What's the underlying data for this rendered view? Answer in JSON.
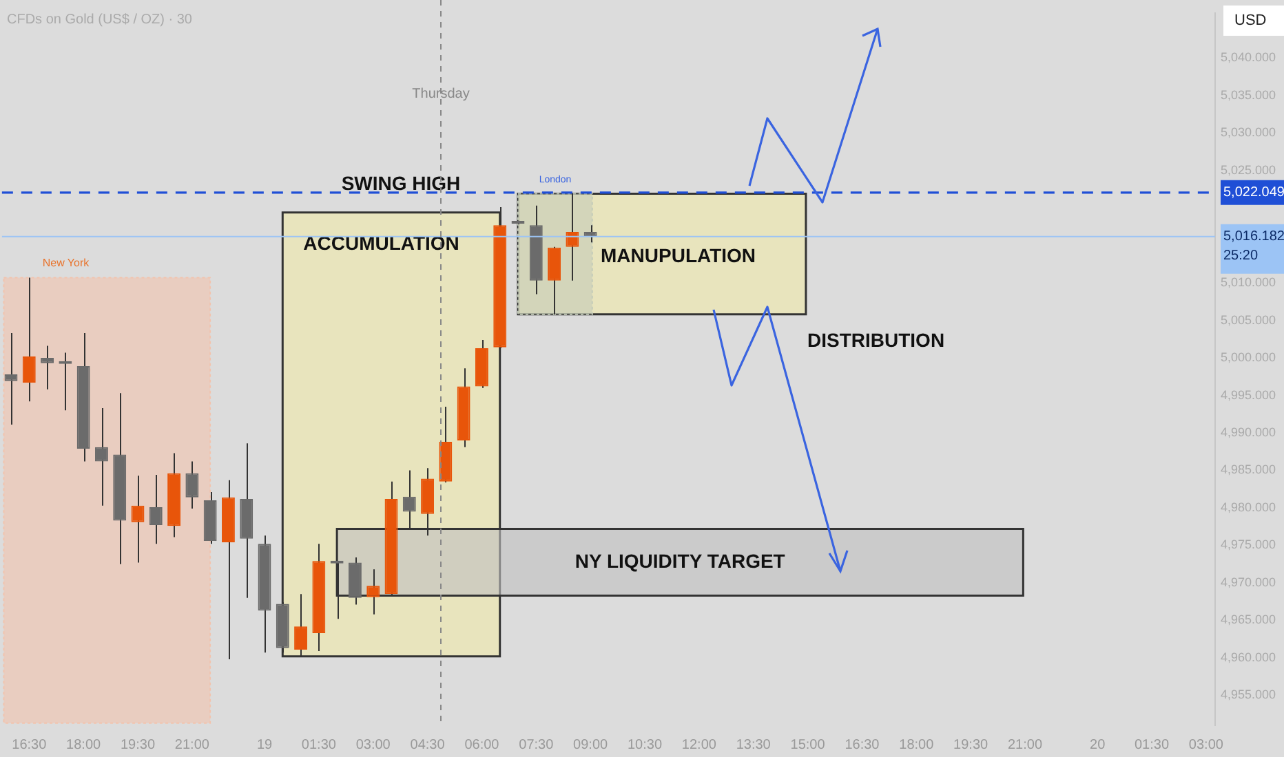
{
  "chart_data": {
    "type": "candlestick",
    "title": "CFDs on Gold (US$ / OZ) · 30",
    "categories": [
      null,
      "16:30",
      null,
      null,
      "18:00",
      null,
      null,
      "19:30",
      null,
      null,
      "21:00",
      null,
      null,
      null,
      "19",
      null,
      null,
      "01:30",
      null,
      null,
      "03:00",
      null,
      null,
      "04:30",
      null,
      null,
      "06:00",
      null,
      null,
      "07:30",
      null,
      null,
      "09:00",
      null,
      null,
      "10:30",
      null,
      null,
      "12:00",
      null,
      null,
      "13:30",
      null,
      null,
      "15:00",
      null,
      null,
      "16:30",
      null,
      null,
      "18:00",
      null,
      null,
      "19:30",
      null,
      null,
      "21:00",
      null,
      null,
      null,
      "20",
      null,
      null,
      "01:30",
      null,
      null,
      "03:00"
    ],
    "ohlc": [
      [
        4997.8,
        5003.3,
        4991.1,
        4996.9
      ],
      [
        4996.7,
        5010.7,
        4994.2,
        5000.2
      ],
      [
        5000.0,
        5001.6,
        4995.8,
        4999.3
      ],
      [
        4999.4,
        5000.7,
        4993.0,
        4999.2
      ],
      [
        4998.9,
        5003.3,
        4986.2,
        4987.9
      ],
      [
        4988.1,
        4993.3,
        4980.3,
        4986.2
      ],
      [
        4987.1,
        4995.3,
        4972.5,
        4978.3
      ],
      [
        4978.1,
        4984.3,
        4972.7,
        4980.3
      ],
      [
        4980.1,
        4984.4,
        4975.2,
        4977.7
      ],
      [
        4977.6,
        4987.3,
        4976.1,
        4984.6
      ],
      [
        4984.6,
        4986.2,
        4979.9,
        4981.4
      ],
      [
        4981.0,
        4982.1,
        4975.2,
        4975.6
      ],
      [
        4975.4,
        4983.7,
        4959.8,
        4981.4
      ],
      [
        4981.2,
        4988.6,
        4968.0,
        4975.9
      ],
      [
        4975.2,
        4976.3,
        4960.7,
        4966.3
      ],
      [
        4967.2,
        4967.4,
        4960.7,
        4961.3
      ],
      [
        4961.1,
        4968.5,
        4960.2,
        4964.2
      ],
      [
        4963.3,
        4975.2,
        4960.9,
        4972.9
      ],
      [
        4972.8,
        4972.9,
        4965.2,
        4972.6
      ],
      [
        4972.7,
        4973.4,
        4967.1,
        4968.0
      ],
      [
        4968.1,
        4971.8,
        4965.8,
        4969.6
      ],
      [
        4968.5,
        4983.5,
        4968.4,
        4981.2
      ],
      [
        4981.5,
        4985.0,
        4977.2,
        4979.5
      ],
      [
        4979.2,
        4985.3,
        4976.3,
        4983.9
      ],
      [
        4983.5,
        4993.5,
        4983.4,
        4988.8
      ],
      [
        4989.0,
        4998.6,
        4988.1,
        4996.2
      ],
      [
        4996.2,
        5002.4,
        4996.0,
        5001.3
      ],
      [
        5001.4,
        5020.1,
        5001.3,
        5017.7
      ],
      [
        5018.2,
        5018.3,
        5017.8,
        5017.9
      ],
      [
        5017.7,
        5020.3,
        5008.5,
        5010.3
      ],
      [
        5010.3,
        5014.8,
        5005.8,
        5014.7
      ],
      [
        5014.8,
        5021.9,
        5010.3,
        5016.8
      ],
      [
        5016.8,
        5017.7,
        5015.4,
        5016.182
      ],
      null,
      null,
      null,
      null,
      null,
      null,
      null,
      null,
      null,
      null,
      null,
      null,
      null,
      null,
      null,
      null,
      null,
      null,
      null,
      null,
      null,
      null,
      null,
      null,
      null,
      null,
      null,
      null,
      null,
      null,
      null,
      null,
      null,
      null
    ],
    "colors": [
      "#6b6b6b",
      "#e8550a",
      "#6b6b6b",
      "#6b6b6b",
      "#6b6b6b",
      "#6b6b6b",
      "#6b6b6b",
      "#e8550a",
      "#6b6b6b",
      "#e8550a",
      "#6b6b6b",
      "#6b6b6b",
      "#e8550a",
      "#6b6b6b",
      "#6b6b6b",
      "#6b6b6b",
      "#e8550a",
      "#e8550a",
      "#6b6b6b",
      "#6b6b6b",
      "#e8550a",
      "#e8550a",
      "#6b6b6b",
      "#e8550a",
      "#e8550a",
      "#e8550a",
      "#e8550a",
      "#e8550a",
      "#6b6b6b",
      "#6b6b6b",
      "#e8550a",
      "#e8550a",
      "#6b6b6b",
      null,
      null,
      null,
      null,
      null,
      null,
      null,
      null,
      null,
      null,
      null,
      null,
      null,
      null,
      null,
      null,
      null,
      null,
      null,
      null,
      null,
      null,
      null,
      null,
      null,
      null,
      null,
      null,
      null,
      null,
      null,
      null,
      null,
      null
    ],
    "ylim": [
      4951,
      5046
    ],
    "yticks": [
      {
        "value": 4955,
        "label": "4,955.000"
      },
      {
        "value": 4960,
        "label": "4,960.000"
      },
      {
        "value": 4965,
        "label": "4,965.000"
      },
      {
        "value": 4970,
        "label": "4,970.000"
      },
      {
        "value": 4975,
        "label": "4,975.000"
      },
      {
        "value": 4980,
        "label": "4,980.000"
      },
      {
        "value": 4985,
        "label": "4,985.000"
      },
      {
        "value": 4990,
        "label": "4,990.000"
      },
      {
        "value": 4995,
        "label": "4,995.000"
      },
      {
        "value": 5000,
        "label": "5,000.000"
      },
      {
        "value": 5005,
        "label": "5,005.000"
      },
      {
        "value": 5010,
        "label": "5,010.000"
      },
      {
        "value": 5025,
        "label": "5,025.000"
      },
      {
        "value": 5030,
        "label": "5,030.000"
      },
      {
        "value": 5035,
        "label": "5,035.000"
      },
      {
        "value": 5040,
        "label": "5,040.000"
      }
    ],
    "grid": false,
    "legend": false,
    "ref_lines": [
      {
        "axis": "y",
        "value": 5022.049,
        "label": "SWING HIGH",
        "color": "#1f4fd6",
        "line_style": "dashed"
      },
      {
        "axis": "y",
        "value": 5016.182,
        "color": "#9cc4f5",
        "line_style": "solid"
      }
    ],
    "bands": [
      {
        "axis": "y",
        "from": 4951.3,
        "to": 5010.7,
        "label": "New York",
        "color": "#f2c3ad"
      },
      {
        "axis": "y",
        "from": 4960.2,
        "to": 5019.4,
        "label": "ACCUMULATION",
        "color": "#f0eaa8"
      },
      {
        "axis": "y",
        "from": 5005.8,
        "to": 5021.9,
        "label": "MANUPULATION",
        "color": "#f0eaa8"
      },
      {
        "axis": "y",
        "from": 5005.8,
        "to": 5021.9,
        "label": "London",
        "color": "#c4cbb8"
      },
      {
        "axis": "y",
        "from": 4968.3,
        "to": 4977.2,
        "label": "NY LIQUIDITY TARGET",
        "color": "#c0c0c0"
      }
    ],
    "annotations": [
      "Thursday",
      "DISTRIBUTION",
      "USD",
      "5,022.049",
      "5,016.182",
      "25:20"
    ]
  }
}
